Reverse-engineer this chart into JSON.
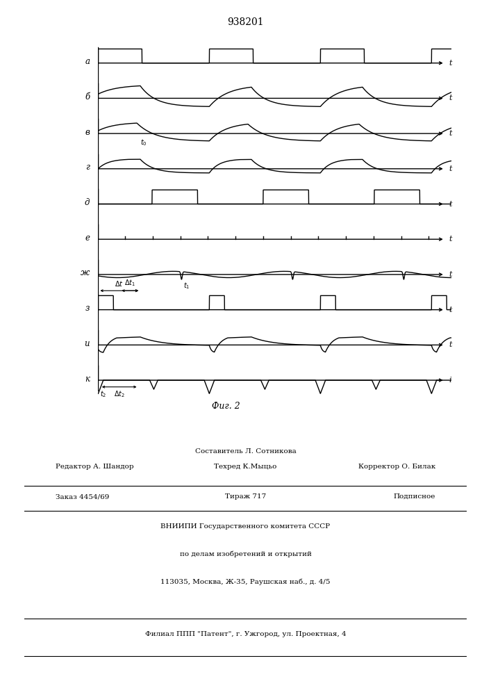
{
  "title": "938201",
  "fig_label": "Фиг. 2",
  "background_color": "#ffffff",
  "line_color": "#000000",
  "chan_labels": [
    "а",
    "б",
    "в",
    "г",
    "д",
    "е",
    "ж",
    "з",
    "и",
    "к"
  ],
  "footer_line1": "Составитель Л. Сотникова",
  "footer_line2_left": "Редактор А. Шандор",
  "footer_line2_mid": "Техред К.Мыцьо",
  "footer_line2_right": "Корректор О. Билак",
  "footer_line3_left": "Заказ 4454/69",
  "footer_line3_mid": "Тираж 717",
  "footer_line3_right": "Подписное",
  "footer_line4": "ВНИИПИ Государственного комитета СССР",
  "footer_line5": "по делам изобретений и открытий",
  "footer_line6": "113035, Москва, Ж-35, Раушская наб., д. 4/5",
  "footer_line7": "Филиал ППП \"Патент\", г. Ужгород, ул. Проектная, 4"
}
